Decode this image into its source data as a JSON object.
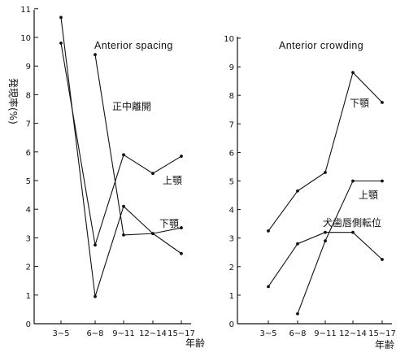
{
  "y_axis_label": "発現率(%)",
  "x_axis_label": "年齢",
  "chart_data": [
    {
      "type": "line",
      "title": "Anterior spacing",
      "categories": [
        "3~5",
        "6~8",
        "9~11",
        "12~14",
        "15~17"
      ],
      "x_unit_label": "年齢",
      "ylim": [
        0,
        11
      ],
      "yticks": [
        0,
        1,
        2,
        3,
        4,
        5,
        6,
        7,
        8,
        9,
        10,
        11
      ],
      "grid": false,
      "series": [
        {
          "name": "正中離開",
          "values": [
            10.7,
            0.95,
            4.1,
            3.15,
            2.45
          ]
        },
        {
          "name": "上顎",
          "values": [
            9.8,
            2.75,
            5.9,
            5.25,
            5.85
          ]
        },
        {
          "name": "下顎",
          "values": [
            null,
            9.4,
            3.1,
            3.15,
            3.35
          ]
        }
      ]
    },
    {
      "type": "line",
      "title": "Anterior crowding",
      "categories": [
        "3~5",
        "6~8",
        "9~11",
        "12~14",
        "15~17"
      ],
      "x_unit_label": "年齢",
      "ylim": [
        0,
        10
      ],
      "yticks": [
        0,
        1,
        2,
        3,
        4,
        5,
        6,
        7,
        8,
        9,
        10
      ],
      "grid": false,
      "series": [
        {
          "name": "下顎",
          "values": [
            3.25,
            4.65,
            5.3,
            8.8,
            7.75
          ]
        },
        {
          "name": "上顎",
          "values": [
            null,
            0.35,
            2.9,
            5.0,
            5.0
          ]
        },
        {
          "name": "犬歯唇側転位",
          "values": [
            1.3,
            2.8,
            3.2,
            3.2,
            2.25
          ]
        }
      ]
    }
  ]
}
